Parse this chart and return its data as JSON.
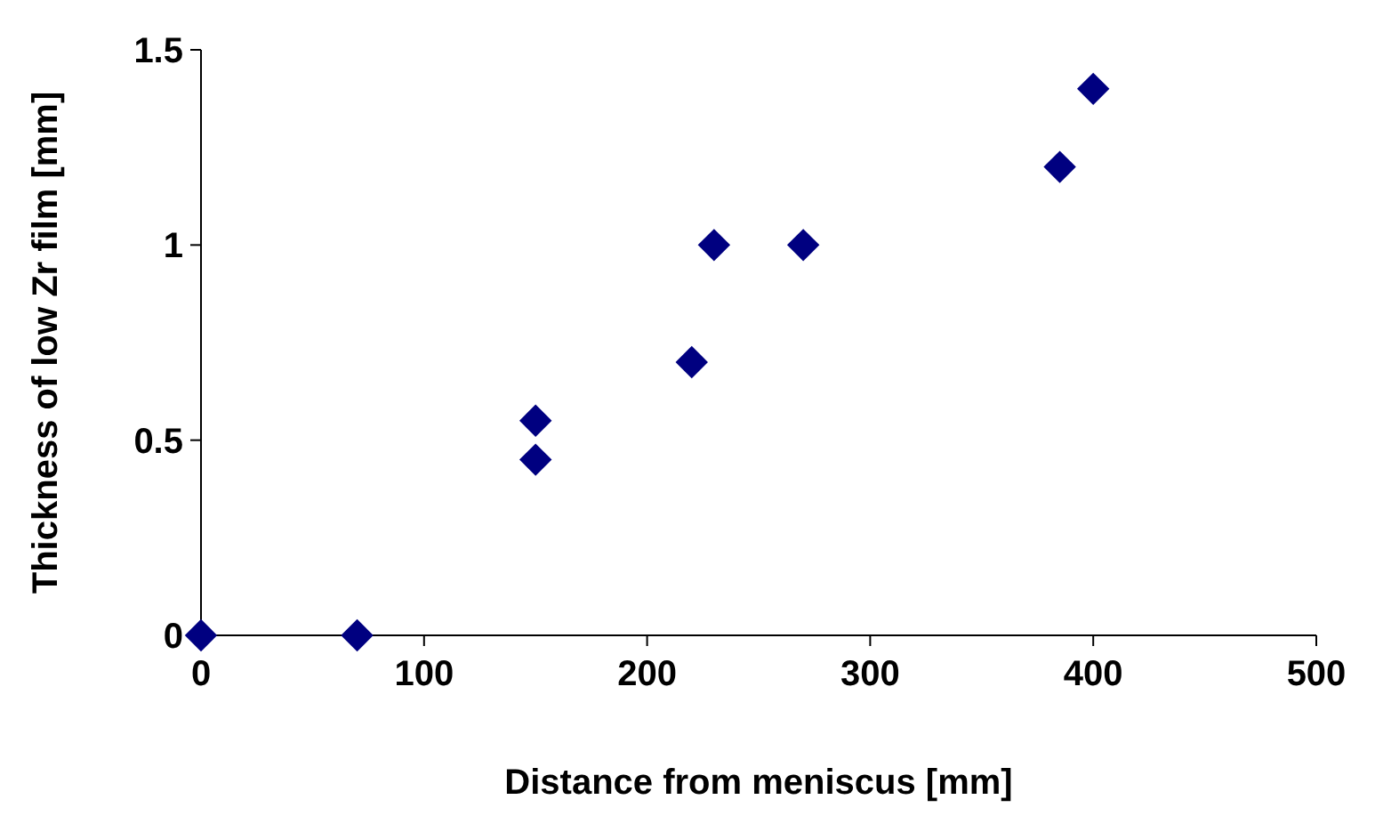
{
  "chart_data": {
    "type": "scatter",
    "xlabel": "Distance from meniscus [mm]",
    "ylabel": "Thickness of low Zr film [mm]",
    "x": [
      0,
      70,
      150,
      150,
      220,
      230,
      270,
      385,
      400
    ],
    "series": [
      {
        "color": "#000080",
        "values": [
          0,
          0,
          0.55,
          0.45,
          0.7,
          1.0,
          1.0,
          1.2,
          1.4
        ]
      }
    ],
    "xlim": [
      0,
      500
    ],
    "xticks": [
      0,
      100,
      200,
      300,
      400,
      500
    ],
    "ylim": [
      0,
      1.5
    ],
    "yticks": [
      0,
      0.5,
      1,
      1.5
    ],
    "grid": false,
    "marker": "diamond"
  }
}
